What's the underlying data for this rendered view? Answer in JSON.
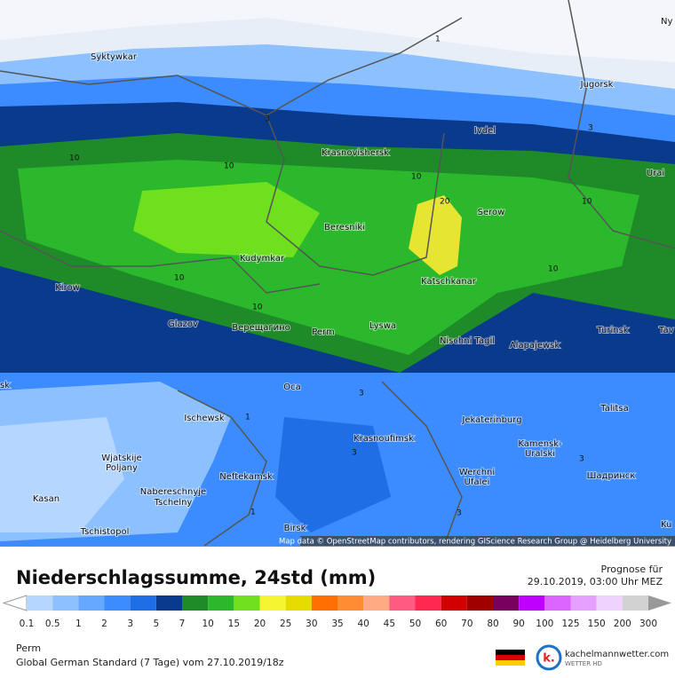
{
  "map": {
    "cities": [
      "Syktywkar",
      "Jugorsk",
      "Ivdel",
      "Krasnovishersk",
      "Urai",
      "Serow",
      "Beresniki",
      "Kudymkar",
      "Katschkanar",
      "Kirow",
      "Glazov",
      "Верещагино",
      "Perm",
      "Lyswa",
      "Nischni Tagil",
      "Alapajewsk",
      "Turinsk",
      "Tav",
      "Oca",
      "Talitsa",
      "Ischewsk",
      "Jekaterinburg",
      "Krasnoufimsk",
      "Kamensk-",
      "Uralski",
      "Wjatskije",
      "Poljany",
      "Neftekamsk",
      "Werchni",
      "Ufalei",
      "Шадринск",
      "Nabereschnyje",
      "Tschelny",
      "Kasan",
      "Tschistopol",
      "Birsk",
      "Ny",
      "Ku",
      "sk"
    ],
    "contour_labels": [
      "1",
      "3",
      "10",
      "20",
      "3",
      "10",
      "10",
      "10",
      "10",
      "10",
      "10",
      "3",
      "3",
      "1",
      "3",
      "3",
      "1"
    ],
    "attribution": "Map data © OpenStreetMap contributors, rendering GIScience Research Group @ Heidelberg University"
  },
  "footer": {
    "title": "Niederschlagssumme, 24std (mm)",
    "forecast_label": "Prognose für",
    "forecast_time": "29.10.2019, 03:00 Uhr MEZ",
    "location": "Perm",
    "model": "Global German Standard (7 Tage) vom 27.10.2019/18z",
    "brand": "kachelmannwetter.com",
    "brand_sub": "WETTER HD"
  },
  "legend": {
    "labels": [
      "0.1",
      "0.5",
      "1",
      "2",
      "3",
      "5",
      "7",
      "10",
      "15",
      "20",
      "25",
      "30",
      "35",
      "40",
      "45",
      "50",
      "60",
      "70",
      "80",
      "90",
      "100",
      "125",
      "150",
      "200",
      "300"
    ],
    "colors": [
      "#b4d6ff",
      "#8cc0ff",
      "#64a8ff",
      "#3c8cff",
      "#1e6ee6",
      "#0a3a8c",
      "#1e8a28",
      "#2cb82c",
      "#6ee01e",
      "#f5f532",
      "#e6dc00",
      "#ff6e00",
      "#ff8c32",
      "#ffaa82",
      "#ff5a82",
      "#ff2850",
      "#d20000",
      "#a00000",
      "#7a0060",
      "#c000ff",
      "#dc64ff",
      "#e6a0ff",
      "#f0d2ff",
      "#d2d2d2"
    ]
  }
}
